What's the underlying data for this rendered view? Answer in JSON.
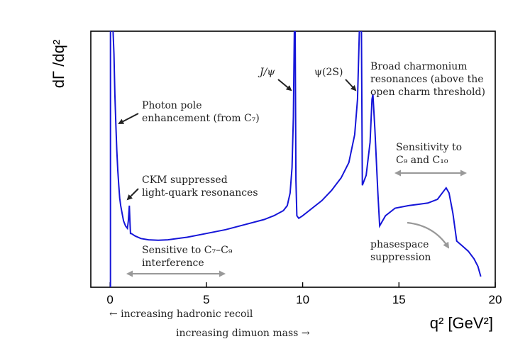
{
  "chart_data": {
    "type": "line",
    "ylabel": "dΓ /dq²",
    "xlabel": "q² [GeV²]",
    "xlim": [
      -1,
      20
    ],
    "ylim": [
      0,
      1
    ],
    "xticks": [
      0,
      5,
      10,
      15,
      20
    ],
    "xtick_labels": [
      "0",
      "5",
      "10",
      "15",
      "20"
    ],
    "grid": false,
    "color": "#1515d8",
    "series": [
      {
        "values_note_removed": true,
        "x": [
          0.02,
          0.05,
          0.08,
          0.1,
          0.12,
          0.15,
          0.2,
          0.25,
          0.3,
          0.35,
          0.4,
          0.45,
          0.5,
          0.55,
          0.6,
          0.7,
          0.8,
          0.9,
          0.95,
          1.0,
          1.03,
          1.06,
          1.1,
          1.3,
          1.6,
          2.0,
          2.5,
          3.0,
          4.0,
          5.0,
          6.0,
          7.0,
          8.0,
          8.5,
          9.0,
          9.2,
          9.35,
          9.45,
          9.52,
          9.57,
          9.61,
          9.65,
          9.7,
          9.8,
          10.0,
          10.5,
          11.0,
          11.5,
          12.0,
          12.4,
          12.7,
          12.85,
          12.95,
          13.0,
          13.05,
          13.1,
          13.3,
          13.5,
          13.6,
          13.65,
          13.75,
          13.9,
          14.0,
          14.3,
          14.8,
          15.5,
          16.0,
          16.5,
          17.0,
          17.3,
          17.45,
          17.6,
          17.8,
          18.0,
          18.3,
          18.6,
          18.9,
          19.1,
          19.25
        ],
        "y": [
          1.0,
          1.0,
          1.0,
          1.0,
          1.0,
          1.0,
          0.9,
          0.74,
          0.62,
          0.52,
          0.44,
          0.38,
          0.33,
          0.3,
          0.28,
          0.24,
          0.22,
          0.21,
          0.24,
          0.3,
          0.24,
          0.19,
          0.19,
          0.18,
          0.17,
          0.165,
          0.163,
          0.165,
          0.175,
          0.19,
          0.205,
          0.225,
          0.245,
          0.26,
          0.28,
          0.3,
          0.35,
          0.45,
          0.65,
          1.0,
          1.0,
          0.4,
          0.26,
          0.25,
          0.26,
          0.29,
          0.32,
          0.36,
          0.41,
          0.47,
          0.58,
          0.72,
          1.0,
          1.0,
          1.0,
          0.38,
          0.42,
          0.55,
          0.72,
          0.74,
          0.6,
          0.36,
          0.22,
          0.26,
          0.29,
          0.3,
          0.305,
          0.31,
          0.325,
          0.355,
          0.37,
          0.35,
          0.27,
          0.16,
          0.14,
          0.12,
          0.09,
          0.06,
          0.02
        ]
      }
    ],
    "annotations": {
      "jpsi": "J/ψ",
      "psi2s": "ψ(2S)",
      "charm_line1": "Broad charmonium",
      "charm_line2": "resonances (above the",
      "charm_line3": "open charm threshold)",
      "photon_line1": "Photon pole",
      "photon_line2": "enhancement (from C₇)",
      "ckm_line1": "CKM suppressed",
      "ckm_line2": "light-quark resonances",
      "sens_c9_line1": "Sensitivity to",
      "sens_c9_line2": "C₉ and C₁₀",
      "interf_line1": "Sensitive to C₇–C₉",
      "interf_line2": "interference",
      "phase_line1": "phasespace",
      "phase_line2": "suppression",
      "recoil": "← increasing hadronic recoil",
      "dimuon": "increasing dimuon mass →"
    }
  }
}
